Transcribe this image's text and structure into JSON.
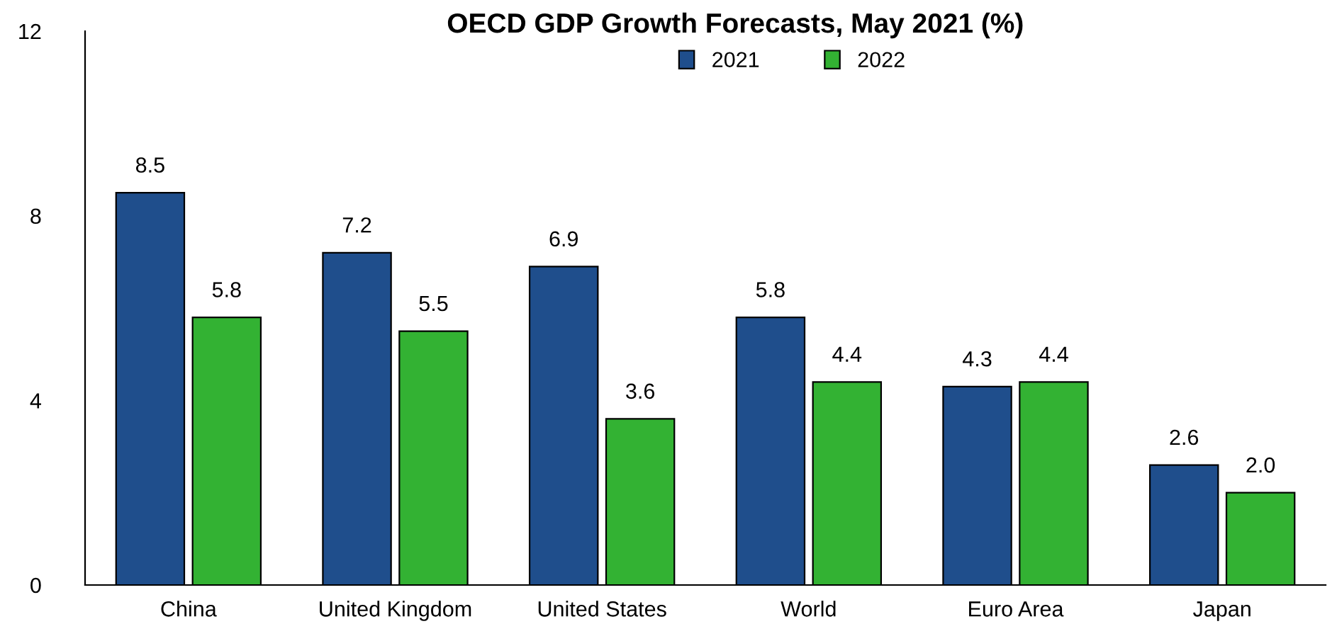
{
  "chart_data": {
    "type": "bar",
    "title": "OECD GDP Growth Forecasts, May 2021 (%)",
    "categories": [
      "China",
      "United Kingdom",
      "United States",
      "World",
      "Euro Area",
      "Japan"
    ],
    "series": [
      {
        "name": "2021",
        "color": "#1f4e8c",
        "values": [
          8.5,
          7.2,
          6.9,
          5.8,
          4.3,
          2.6
        ],
        "value_labels": [
          "8.5",
          "7.2",
          "6.9",
          "5.8",
          "4.3",
          "2.6"
        ]
      },
      {
        "name": "2022",
        "color": "#33b233",
        "values": [
          5.8,
          5.5,
          3.6,
          4.4,
          4.4,
          2.0
        ],
        "value_labels": [
          "5.8",
          "5.5",
          "3.6",
          "4.4",
          "4.4",
          "2.0"
        ]
      }
    ],
    "ylim": [
      0,
      12
    ],
    "yticks": [
      0,
      4,
      8,
      12
    ],
    "grid": false,
    "legend": "top"
  }
}
